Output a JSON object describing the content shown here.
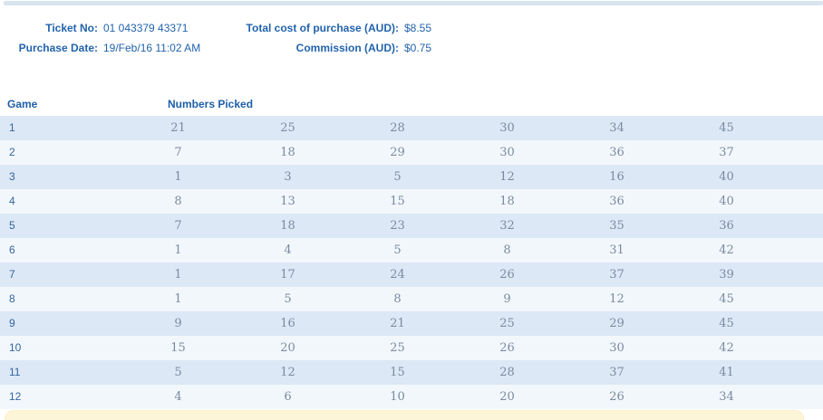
{
  "header": {
    "ticket_no_label": "Ticket No:",
    "ticket_no": "01 043379 43371",
    "purchase_date_label": "Purchase Date:",
    "purchase_date": "19/Feb/16 11:02 AM",
    "total_cost_label": "Total cost of purchase (AUD):",
    "total_cost": "$8.55",
    "commission_label": "Commission (AUD):",
    "commission": "$0.75"
  },
  "table": {
    "header": {
      "game": "Game",
      "numbers_picked": "Numbers Picked"
    },
    "rows": [
      {
        "game": "1",
        "numbers": [
          "21",
          "25",
          "28",
          "30",
          "34",
          "45"
        ]
      },
      {
        "game": "2",
        "numbers": [
          "7",
          "18",
          "29",
          "30",
          "36",
          "37"
        ]
      },
      {
        "game": "3",
        "numbers": [
          "1",
          "3",
          "5",
          "12",
          "16",
          "40"
        ]
      },
      {
        "game": "4",
        "numbers": [
          "8",
          "13",
          "15",
          "18",
          "36",
          "40"
        ]
      },
      {
        "game": "5",
        "numbers": [
          "7",
          "18",
          "23",
          "32",
          "35",
          "36"
        ]
      },
      {
        "game": "6",
        "numbers": [
          "1",
          "4",
          "5",
          "8",
          "31",
          "42"
        ]
      },
      {
        "game": "7",
        "numbers": [
          "1",
          "17",
          "24",
          "26",
          "37",
          "39"
        ]
      },
      {
        "game": "8",
        "numbers": [
          "1",
          "5",
          "8",
          "9",
          "12",
          "45"
        ]
      },
      {
        "game": "9",
        "numbers": [
          "9",
          "16",
          "21",
          "25",
          "29",
          "45"
        ]
      },
      {
        "game": "10",
        "numbers": [
          "15",
          "20",
          "25",
          "26",
          "30",
          "42"
        ]
      },
      {
        "game": "11",
        "numbers": [
          "5",
          "12",
          "15",
          "28",
          "37",
          "41"
        ]
      },
      {
        "game": "12",
        "numbers": [
          "4",
          "6",
          "10",
          "20",
          "26",
          "34"
        ]
      }
    ]
  },
  "colors": {
    "accent_blue": "#2263ac",
    "table_header_blue": "#1d5fa8",
    "game_number_blue": "#34659f",
    "picked_number_slate": "#7b8aa1",
    "row_odd_bg": "#dce8f5",
    "row_even_bg": "#f2f7fb",
    "topbar_bg": "#d9e4f1",
    "notice_bar_bg": "#fdf5d7"
  }
}
